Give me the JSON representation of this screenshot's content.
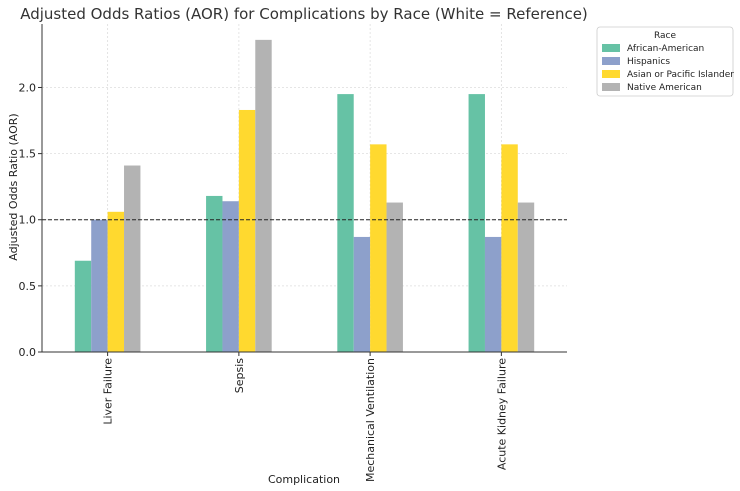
{
  "chart_data": {
    "type": "bar",
    "title": "Adjusted Odds Ratios (AOR) for Complications by Race (White = Reference)",
    "xlabel": "Complication",
    "ylabel": "Adjusted Odds Ratio (AOR)",
    "categories": [
      "Liver Failure",
      "Sepsis",
      "Mechanical Ventilation",
      "Acute Kidney Failure"
    ],
    "series": [
      {
        "name": "African-American",
        "color": "#66c2a5",
        "values": [
          0.69,
          1.18,
          1.95,
          1.95
        ]
      },
      {
        "name": "Hispanics",
        "color": "#8da0cb",
        "values": [
          1.0,
          1.14,
          0.87,
          0.87
        ]
      },
      {
        "name": "Asian or Pacific Islander",
        "color": "#ffd92f",
        "values": [
          1.06,
          1.83,
          1.57,
          1.57
        ]
      },
      {
        "name": "Native American",
        "color": "#b3b3b3",
        "values": [
          1.41,
          2.36,
          1.13,
          1.13
        ]
      }
    ],
    "ylim": [
      0,
      2.48
    ],
    "yticks": [
      "0.0",
      "0.5",
      "1.0",
      "1.5",
      "2.0"
    ],
    "reference_line": {
      "value": 1.0,
      "style": "dashed"
    },
    "grid": true,
    "legend": {
      "title": "Race",
      "placement": "outside-top-right"
    }
  }
}
